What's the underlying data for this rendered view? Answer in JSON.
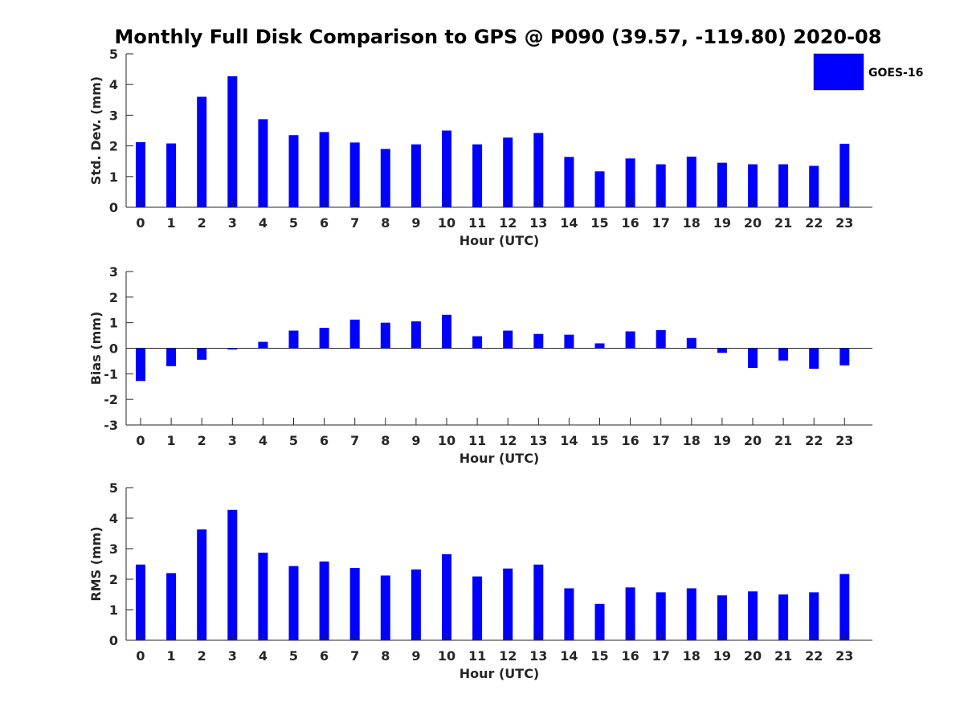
{
  "title": "Monthly Full Disk Comparison to GPS @ P090 (39.57, -119.80) 2020-08",
  "legend": {
    "label": "GOES-16",
    "color": "#0000ff",
    "position": "top-right"
  },
  "chart_data": [
    {
      "type": "bar",
      "xlabel": "Hour (UTC)",
      "ylabel": "Std. Dev. (mm)",
      "categories": [
        "0",
        "1",
        "2",
        "3",
        "4",
        "5",
        "6",
        "7",
        "8",
        "9",
        "10",
        "11",
        "12",
        "13",
        "14",
        "15",
        "16",
        "17",
        "18",
        "19",
        "20",
        "21",
        "22",
        "23"
      ],
      "series": [
        {
          "name": "GOES-16",
          "values": [
            2.12,
            2.08,
            3.6,
            4.27,
            2.87,
            2.35,
            2.45,
            2.11,
            1.9,
            2.05,
            2.5,
            2.05,
            2.27,
            2.42,
            1.64,
            1.17,
            1.59,
            1.4,
            1.65,
            1.45,
            1.4,
            1.4,
            1.35,
            2.07
          ]
        }
      ],
      "ylim": [
        0,
        5
      ],
      "yticks": [
        0,
        1,
        2,
        3,
        4,
        5
      ]
    },
    {
      "type": "bar",
      "xlabel": "Hour (UTC)",
      "ylabel": "Bias (mm)",
      "categories": [
        "0",
        "1",
        "2",
        "3",
        "4",
        "5",
        "6",
        "7",
        "8",
        "9",
        "10",
        "11",
        "12",
        "13",
        "14",
        "15",
        "16",
        "17",
        "18",
        "19",
        "20",
        "21",
        "22",
        "23"
      ],
      "series": [
        {
          "name": "GOES-16",
          "values": [
            -1.28,
            -0.7,
            -0.45,
            -0.05,
            0.25,
            0.69,
            0.8,
            1.12,
            1.0,
            1.05,
            1.31,
            0.47,
            0.69,
            0.56,
            0.53,
            0.19,
            0.66,
            0.71,
            0.4,
            -0.18,
            -0.77,
            -0.48,
            -0.8,
            -0.67
          ]
        }
      ],
      "ylim": [
        -3,
        3
      ],
      "yticks": [
        -3,
        -2,
        -1,
        0,
        1,
        2,
        3
      ]
    },
    {
      "type": "bar",
      "xlabel": "Hour (UTC)",
      "ylabel": "RMS (mm)",
      "categories": [
        "0",
        "1",
        "2",
        "3",
        "4",
        "5",
        "6",
        "7",
        "8",
        "9",
        "10",
        "11",
        "12",
        "13",
        "14",
        "15",
        "16",
        "17",
        "18",
        "19",
        "20",
        "21",
        "22",
        "23"
      ],
      "series": [
        {
          "name": "GOES-16",
          "values": [
            2.48,
            2.2,
            3.63,
            4.27,
            2.87,
            2.43,
            2.58,
            2.37,
            2.12,
            2.32,
            2.82,
            2.09,
            2.35,
            2.48,
            1.7,
            1.19,
            1.73,
            1.57,
            1.7,
            1.47,
            1.6,
            1.5,
            1.57,
            2.17
          ]
        }
      ],
      "ylim": [
        0,
        5
      ],
      "yticks": [
        0,
        1,
        2,
        3,
        4,
        5
      ]
    }
  ]
}
